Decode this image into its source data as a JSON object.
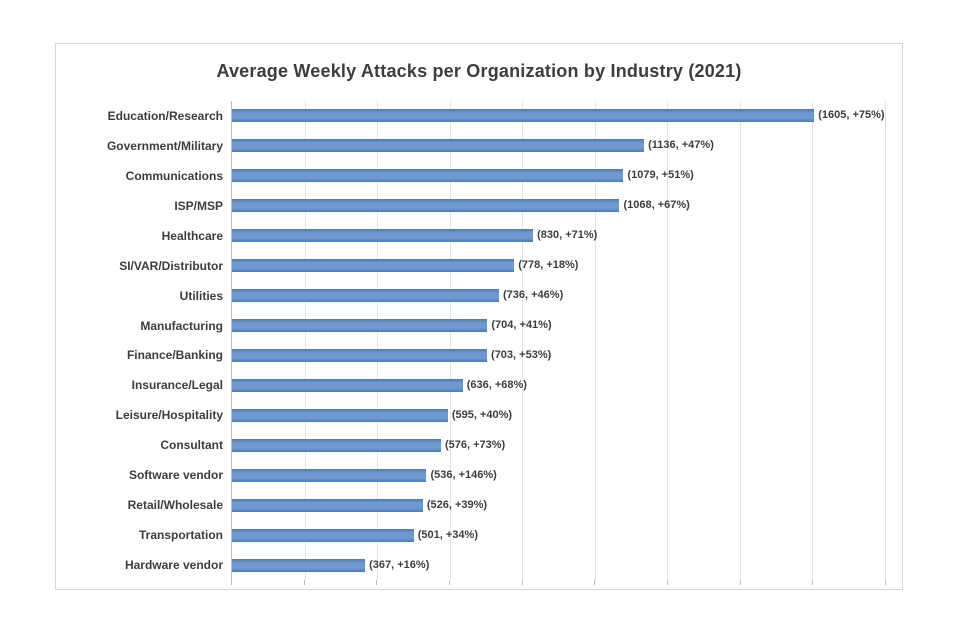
{
  "chart_data": {
    "type": "bar",
    "orientation": "horizontal",
    "title": "Average Weekly Attacks per Organization by Industry (2021)",
    "categories": [
      "Education/Research",
      "Government/Military",
      "Communications",
      "ISP/MSP",
      "Healthcare",
      "SI/VAR/Distributor",
      "Utilities",
      "Manufacturing",
      "Finance/Banking",
      "Insurance/Legal",
      "Leisure/Hospitality",
      "Consultant",
      "Software vendor",
      "Retail/Wholesale",
      "Transportation",
      "Hardware vendor"
    ],
    "values": [
      1605,
      1136,
      1079,
      1068,
      830,
      778,
      736,
      704,
      703,
      636,
      595,
      576,
      536,
      526,
      501,
      367
    ],
    "growth_pcts": [
      "+75%",
      "+47%",
      "+51%",
      "+67%",
      "+71%",
      "+18%",
      "+46%",
      "+41%",
      "+53%",
      "+68%",
      "+40%",
      "+73%",
      "+146%",
      "+39%",
      "+34%",
      "+16%"
    ],
    "point_labels": [
      "(1605, +75%)",
      "(1136, +47%)",
      "(1079, +51%)",
      "(1068, +67%)",
      "(830, +71%)",
      "(778, +18%)",
      "(736, +46%)",
      "(704, +41%)",
      "(703, +53%)",
      "(636, +68%)",
      "(595, +40%)",
      "(576, +73%)",
      "(536, +146%)",
      "(526, +39%)",
      "(501, +34%)",
      "(367, +16%)"
    ],
    "xlabel": "",
    "ylabel": "",
    "xlim": [
      0,
      1800
    ],
    "gridline_interval": 200,
    "x_tick_labels_visible": false,
    "grid": "vertical-only",
    "legend_position": "none",
    "colors": {
      "bar": "#5b8ac2",
      "bar_edge": "#4a7ab8",
      "gridline": "#e4e4e4",
      "axis_line": "#bdbdbd",
      "text": "#3d3d3d",
      "chart_border": "#d6d6d6",
      "background": "#ffffff"
    }
  }
}
